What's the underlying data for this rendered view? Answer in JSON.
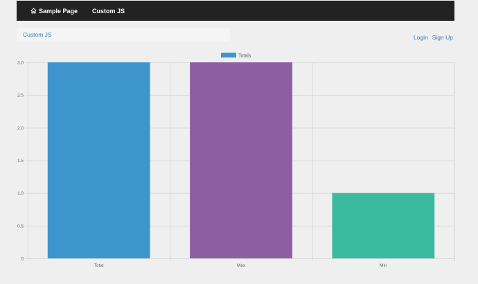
{
  "navbar": {
    "brand_label": "Sample Page",
    "custom_js_label": "Custom JS",
    "background": "#222222"
  },
  "breadcrumb": {
    "label": "Custom JS"
  },
  "auth": {
    "login_label": "Login",
    "signup_label": "Sign Up"
  },
  "colors": {
    "link": "#337ab7",
    "page_background": "#efefef"
  },
  "chart_data": {
    "type": "bar",
    "categories": [
      "Total",
      "Max",
      "Min"
    ],
    "series": [
      {
        "name": "Totals",
        "values": [
          3,
          3,
          1
        ],
        "colors": [
          "#3e95cd",
          "#8e5ea2",
          "#3cba9f"
        ]
      }
    ],
    "legend_color": "#3e95cd",
    "ylim": [
      0,
      3
    ],
    "yticks": [
      "3.0",
      "2.5",
      "2.0",
      "1.5",
      "1.0",
      "0.5",
      "0"
    ],
    "ytick_values": [
      3.0,
      2.5,
      2.0,
      1.5,
      1.0,
      0.5,
      0
    ],
    "grid": true,
    "legend_position": "top-center",
    "title": "",
    "xlabel": "",
    "ylabel": ""
  }
}
